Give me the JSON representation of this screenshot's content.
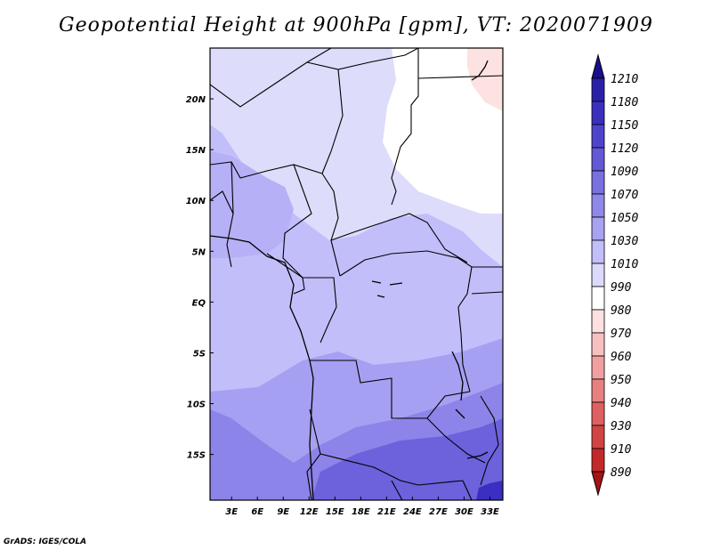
{
  "title": "Geopotential Height at 900hPa [gpm], VT: 2020071909",
  "credit": "GrADS: IGES/COLA",
  "map": {
    "lat_ticks": [
      "20N",
      "15N",
      "10N",
      "5N",
      "EQ",
      "5S",
      "10S",
      "15S"
    ],
    "lon_ticks": [
      "3E",
      "6E",
      "9E",
      "12E",
      "15E",
      "18E",
      "21E",
      "24E",
      "27E",
      "30E",
      "33E"
    ],
    "lat_tick_values": [
      20,
      15,
      10,
      5,
      0,
      -5,
      -10,
      -15
    ],
    "lon_tick_values": [
      3,
      6,
      9,
      12,
      15,
      18,
      21,
      24,
      27,
      30,
      33
    ],
    "extent": {
      "lon_min": 0.5,
      "lon_max": 34.5,
      "lat_min": -19.5,
      "lat_max": 25
    }
  },
  "colorbar": {
    "levels": [
      1210,
      1180,
      1150,
      1120,
      1090,
      1070,
      1050,
      1030,
      1010,
      990,
      980,
      970,
      960,
      950,
      940,
      930,
      910,
      890
    ],
    "colors": [
      "#1a0e8c",
      "#2a20a8",
      "#3b30be",
      "#4e44cc",
      "#6358d6",
      "#7a70e0",
      "#9088e8",
      "#a8a2f0",
      "#c2befa",
      "#dcdafc",
      "#ffffff",
      "#fde0e0",
      "#f7c0c0",
      "#f0a0a0",
      "#e88080",
      "#de6060",
      "#d24444",
      "#c22a2a",
      "#a51414"
    ]
  },
  "fields": {
    "field_colors": {
      "far_north": "#dddcfb",
      "white_core": "#ffffff",
      "pinkish": "#fde2e2",
      "central": "#c2befa",
      "lower_mid": "#b0aaf4",
      "southern": "#a6a0f2",
      "deep_south": "#8c84e8",
      "deepest": "#6c62dc",
      "corner": "#3a2fc0"
    }
  }
}
